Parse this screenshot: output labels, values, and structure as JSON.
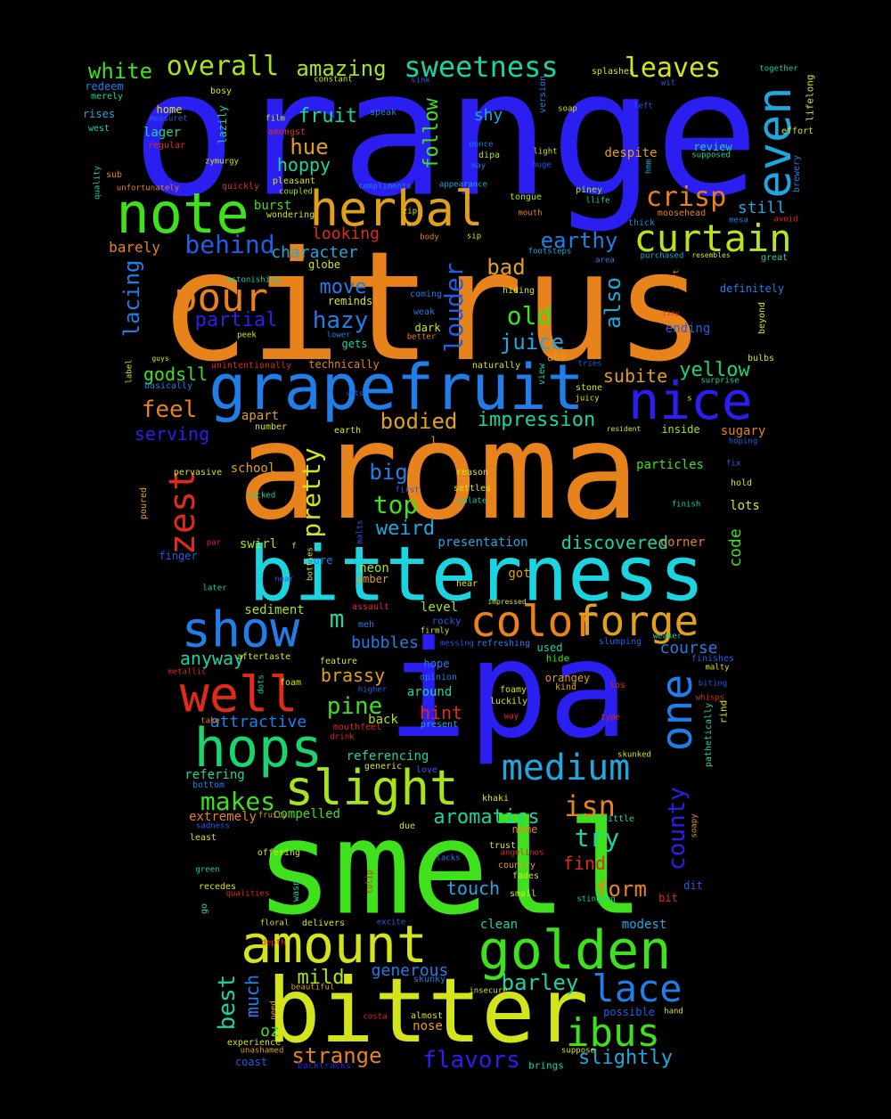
{
  "words": [
    {
      "text": "orange",
      "color": "#2a1ff0"
    },
    {
      "text": "citrus",
      "color": "#e8821a"
    },
    {
      "text": "aroma",
      "color": "#e8821a"
    },
    {
      "text": "ipa",
      "color": "#2a1ff0"
    },
    {
      "text": "smell",
      "color": "#3fe01c"
    },
    {
      "text": "bitter",
      "color": "#d4e41a"
    },
    {
      "text": "bitterness",
      "color": "#1ad4e0"
    },
    {
      "text": "grapefruit",
      "color": "#1f7ee8"
    },
    {
      "text": "note",
      "color": "#3fe01c"
    },
    {
      "text": "herbal",
      "color": "#e0a01a"
    },
    {
      "text": "golden",
      "color": "#3fe01c"
    },
    {
      "text": "amount",
      "color": "#d4e41a"
    },
    {
      "text": "hops",
      "color": "#1ad470"
    },
    {
      "text": "nice",
      "color": "#2a1ff0"
    },
    {
      "text": "show",
      "color": "#1f7ee8"
    },
    {
      "text": "well",
      "color": "#e02a1a"
    },
    {
      "text": "slight",
      "color": "#a8e41a"
    },
    {
      "text": "color",
      "color": "#e8821a"
    },
    {
      "text": "forge",
      "color": "#e0a01a"
    },
    {
      "text": "medium",
      "color": "#1fa8e0"
    },
    {
      "text": "one",
      "color": "#1f7ee8"
    },
    {
      "text": "even",
      "color": "#1fa8e0"
    },
    {
      "text": "curtain",
      "color": "#b8e41a"
    },
    {
      "text": "pour",
      "color": "#e8821a"
    },
    {
      "text": "zest",
      "color": "#e02a1a"
    },
    {
      "text": "ibus",
      "color": "#3fe01c"
    },
    {
      "text": "lace",
      "color": "#1f7ee8"
    },
    {
      "text": "sweetness",
      "color": "#1ad4a0"
    },
    {
      "text": "overall",
      "color": "#a8e41a"
    },
    {
      "text": "leaves",
      "color": "#d4e41a"
    },
    {
      "text": "crisp",
      "color": "#e8821a"
    },
    {
      "text": "louder",
      "color": "#1f5ee8"
    },
    {
      "text": "pretty",
      "color": "#d4e41a"
    },
    {
      "text": "also",
      "color": "#1fa8e0"
    },
    {
      "text": "white",
      "color": "#3fe01c"
    },
    {
      "text": "amazing",
      "color": "#a8e41a"
    },
    {
      "text": "fruit",
      "color": "#1ad4a0"
    },
    {
      "text": "hue",
      "color": "#e0a01a"
    },
    {
      "text": "hoppy",
      "color": "#1ad4a0"
    },
    {
      "text": "follow",
      "color": "#3fe01c"
    },
    {
      "text": "shy",
      "color": "#1fa8e0"
    },
    {
      "text": "behind",
      "color": "#1f5ee8"
    },
    {
      "text": "bad",
      "color": "#e0a01a"
    },
    {
      "text": "earthy",
      "color": "#1f7ee8"
    },
    {
      "text": "looking",
      "color": "#e02a1a"
    },
    {
      "text": "character",
      "color": "#1fa8e0"
    },
    {
      "text": "lacing",
      "color": "#1f7ee8"
    },
    {
      "text": "partial",
      "color": "#2a1ff0"
    },
    {
      "text": "hazy",
      "color": "#1f7ee8"
    },
    {
      "text": "move",
      "color": "#1f7ee8"
    },
    {
      "text": "old",
      "color": "#3fe01c"
    },
    {
      "text": "juice",
      "color": "#1fa8e0"
    },
    {
      "text": "godsll",
      "color": "#3fe01c"
    },
    {
      "text": "subite",
      "color": "#e0a01a"
    },
    {
      "text": "yellow",
      "color": "#1ad470"
    },
    {
      "text": "feel",
      "color": "#e8821a"
    },
    {
      "text": "bodied",
      "color": "#e0a01a"
    },
    {
      "text": "impression",
      "color": "#1ad4a0"
    },
    {
      "text": "serving",
      "color": "#2a1ff0"
    },
    {
      "text": "big",
      "color": "#1f7ee8"
    },
    {
      "text": "top",
      "color": "#3fe01c"
    },
    {
      "text": "weird",
      "color": "#1fa8e0"
    },
    {
      "text": "discovered",
      "color": "#1ad4a0"
    },
    {
      "text": "code",
      "color": "#3fe01c"
    },
    {
      "text": "m",
      "color": "#1ad4a0"
    },
    {
      "text": "brassy",
      "color": "#e0a01a"
    },
    {
      "text": "pine",
      "color": "#3fe01c"
    },
    {
      "text": "hint",
      "color": "#e02a1a"
    },
    {
      "text": "bubbles",
      "color": "#1f7ee8"
    },
    {
      "text": "makes",
      "color": "#3fe01c"
    },
    {
      "text": "anyway",
      "color": "#1ad4a0"
    },
    {
      "text": "attractive",
      "color": "#1f7ee8"
    },
    {
      "text": "course",
      "color": "#1f7ee8"
    },
    {
      "text": "county",
      "color": "#2a1ff0"
    },
    {
      "text": "isn",
      "color": "#e8821a"
    },
    {
      "text": "try",
      "color": "#1ad4a0"
    },
    {
      "text": "aromatics",
      "color": "#1ad4a0"
    },
    {
      "text": "find",
      "color": "#e02a1a"
    },
    {
      "text": "form",
      "color": "#e8821a"
    },
    {
      "text": "touch",
      "color": "#1fa8e0"
    },
    {
      "text": "best",
      "color": "#1ad4a0"
    },
    {
      "text": "much",
      "color": "#1f7ee8"
    },
    {
      "text": "mild",
      "color": "#a8e41a"
    },
    {
      "text": "generous",
      "color": "#1f7ee8"
    },
    {
      "text": "barley",
      "color": "#1ad4a0"
    },
    {
      "text": "strange",
      "color": "#e8821a"
    },
    {
      "text": "flavors",
      "color": "#2a1ff0"
    },
    {
      "text": "slightly",
      "color": "#1fa8e0"
    },
    {
      "text": "oz",
      "color": "#3fe01c"
    },
    {
      "text": "nose",
      "color": "#e0a01a"
    },
    {
      "text": "clean",
      "color": "#1ad4a0"
    },
    {
      "text": "modest",
      "color": "#1fa8e0"
    },
    {
      "text": "compelled",
      "color": "#3fe01c"
    },
    {
      "text": "referencing",
      "color": "#1ad4a0"
    },
    {
      "text": "refering",
      "color": "#1ad4a0"
    },
    {
      "text": "extremely",
      "color": "#e8821a"
    },
    {
      "text": "sediment",
      "color": "#a8e41a"
    },
    {
      "text": "swirl",
      "color": "#a8e41a"
    },
    {
      "text": "presentation",
      "color": "#1fa8e0"
    },
    {
      "text": "corner",
      "color": "#e8821a"
    },
    {
      "text": "neon",
      "color": "#a8e41a"
    },
    {
      "text": "amber",
      "color": "#e0a01a"
    },
    {
      "text": "got",
      "color": "#e0a01a"
    },
    {
      "text": "level",
      "color": "#a8e41a"
    },
    {
      "text": "around",
      "color": "#1ad4a0"
    },
    {
      "text": "back",
      "color": "#a8e41a"
    },
    {
      "text": "hope",
      "color": "#1f7ee8"
    },
    {
      "text": "sugary",
      "color": "#e8821a"
    },
    {
      "text": "inside",
      "color": "#a8e41a"
    },
    {
      "text": "particles",
      "color": "#3fe01c"
    },
    {
      "text": "lots",
      "color": "#d4e41a"
    },
    {
      "text": "apart",
      "color": "#e0a01a"
    },
    {
      "text": "school",
      "color": "#e0a01a"
    },
    {
      "text": "dark",
      "color": "#d4e41a"
    },
    {
      "text": "gets",
      "color": "#1ad4a0"
    },
    {
      "text": "reminds",
      "color": "#d4e41a"
    },
    {
      "text": "globe",
      "color": "#d4e41a"
    },
    {
      "text": "technically",
      "color": "#e8821a"
    },
    {
      "text": "still",
      "color": "#1fa8e0"
    },
    {
      "text": "despite",
      "color": "#e0a01a"
    },
    {
      "text": "review",
      "color": "#1ad4a0"
    },
    {
      "text": "ending",
      "color": "#1f5ee8"
    },
    {
      "text": "definitely",
      "color": "#1f7ee8"
    },
    {
      "text": "barely",
      "color": "#e8821a"
    },
    {
      "text": "burst",
      "color": "#3fe01c"
    },
    {
      "text": "finger",
      "color": "#1f5ee8"
    },
    {
      "text": "home",
      "color": "#d4e41a"
    },
    {
      "text": "lager",
      "color": "#1ad4a0"
    },
    {
      "text": "redeem",
      "color": "#1f7ee8"
    },
    {
      "text": "rises",
      "color": "#1fa8e0"
    },
    {
      "text": "lazily",
      "color": "#1ad4a0"
    },
    {
      "text": "bosy",
      "color": "#d4e41a"
    },
    {
      "text": "merely",
      "color": "#1ad4a0"
    },
    {
      "text": "west",
      "color": "#1ad4a0"
    },
    {
      "text": "regular",
      "color": "#e02a1a"
    },
    {
      "text": "measuret",
      "color": "#1f5ee8"
    },
    {
      "text": "film",
      "color": "#d4e41a"
    },
    {
      "text": "speak",
      "color": "#1f7ee8"
    },
    {
      "text": "amongst",
      "color": "#e02a1a"
    },
    {
      "text": "constant",
      "color": "#d4e41a"
    },
    {
      "text": "sink",
      "color": "#1f5ee8"
    },
    {
      "text": "splashes",
      "color": "#d4e41a"
    },
    {
      "text": "version",
      "color": "#1f7ee8"
    },
    {
      "text": "soap",
      "color": "#d4e41a"
    },
    {
      "text": "wit",
      "color": "#1f5ee8"
    },
    {
      "text": "left",
      "color": "#1f5ee8"
    },
    {
      "text": "together",
      "color": "#1ad4a0"
    },
    {
      "text": "lifelong",
      "color": "#d4e41a"
    },
    {
      "text": "effort",
      "color": "#d4e41a"
    },
    {
      "text": "brewery",
      "color": "#1f7ee8"
    },
    {
      "text": "quality",
      "color": "#1ad4a0"
    },
    {
      "text": "sub",
      "color": "#e8821a"
    },
    {
      "text": "zymurgy",
      "color": "#d4e41a"
    },
    {
      "text": "unfortunately",
      "color": "#e8821a"
    },
    {
      "text": "quickly",
      "color": "#e02a1a"
    },
    {
      "text": "pleasant",
      "color": "#d4e41a"
    },
    {
      "text": "coupled",
      "color": "#a8e41a"
    },
    {
      "text": "wondering",
      "color": "#d4e41a"
    },
    {
      "text": "ounce",
      "color": "#1f7ee8"
    },
    {
      "text": "nay",
      "color": "#1f7ee8"
    },
    {
      "text": "dipa",
      "color": "#a8e41a"
    },
    {
      "text": "compliments",
      "color": "#1f7ee8"
    },
    {
      "text": "appearance",
      "color": "#1fa8e0"
    },
    {
      "text": "light",
      "color": "#d4e41a"
    },
    {
      "text": "huge",
      "color": "#1f5ee8"
    },
    {
      "text": "hmm",
      "color": "#1fa8e0"
    },
    {
      "text": "supposed",
      "color": "#1ad4a0"
    },
    {
      "text": "tongue",
      "color": "#a8e41a"
    },
    {
      "text": "piney",
      "color": "#a8e41a"
    },
    {
      "text": "llife",
      "color": "#1ad4a0"
    },
    {
      "text": "mouth",
      "color": "#e8821a"
    },
    {
      "text": "thick",
      "color": "#1f7ee8"
    },
    {
      "text": "moosehead",
      "color": "#e8821a"
    },
    {
      "text": "mesa",
      "color": "#1f7ee8"
    },
    {
      "text": "avoid",
      "color": "#e02a1a"
    },
    {
      "text": "zip",
      "color": "#d4e41a"
    },
    {
      "text": "o",
      "color": "#d4e41a"
    },
    {
      "text": "body",
      "color": "#e8821a"
    },
    {
      "text": "sip",
      "color": "#d4e41a"
    },
    {
      "text": "footsteps",
      "color": "#1fa8e0"
    },
    {
      "text": "area",
      "color": "#1f7ee8"
    },
    {
      "text": "purchased",
      "color": "#1fa8e0"
    },
    {
      "text": "resembles",
      "color": "#d4e41a"
    },
    {
      "text": "great",
      "color": "#1ad4a0"
    },
    {
      "text": "mort",
      "color": "#e8821a"
    },
    {
      "text": "astonishing",
      "color": "#1ad4a0"
    },
    {
      "text": "coming",
      "color": "#1f7ee8"
    },
    {
      "text": "hiding",
      "color": "#d4e41a"
    },
    {
      "text": "weak",
      "color": "#1f7ee8"
    },
    {
      "text": "better",
      "color": "#e8821a"
    },
    {
      "text": "lower",
      "color": "#1f7ee8"
    },
    {
      "text": "tiny",
      "color": "#e02a1a"
    },
    {
      "text": "beyond",
      "color": "#d4e41a"
    },
    {
      "text": "peek",
      "color": "#d4e41a"
    },
    {
      "text": "label",
      "color": "#d4e41a"
    },
    {
      "text": "guys",
      "color": "#d4e41a"
    },
    {
      "text": "basically",
      "color": "#1f7ee8"
    },
    {
      "text": "unintentionally",
      "color": "#e02a1a"
    },
    {
      "text": "naturally",
      "color": "#d4e41a"
    },
    {
      "text": "abv",
      "color": "#e0a01a"
    },
    {
      "text": "tries",
      "color": "#1f5ee8"
    },
    {
      "text": "view",
      "color": "#1ad4a0"
    },
    {
      "text": "stone",
      "color": "#d4e41a"
    },
    {
      "text": "juicy",
      "color": "#d4e41a"
    },
    {
      "text": "surprise",
      "color": "#1ad4a0"
    },
    {
      "text": "s",
      "color": "#d4e41a"
    },
    {
      "text": "bulbs",
      "color": "#d4e41a"
    },
    {
      "text": "sets",
      "color": "#1f5ee8"
    },
    {
      "text": "number",
      "color": "#d4e41a"
    },
    {
      "text": "earth",
      "color": "#d4e41a"
    },
    {
      "text": "resident",
      "color": "#d4e41a"
    },
    {
      "text": "hoping",
      "color": "#1f5ee8"
    },
    {
      "text": "l",
      "color": "#e0a01a"
    },
    {
      "text": "fix",
      "color": "#1f5ee8"
    },
    {
      "text": "hold",
      "color": "#d4e41a"
    },
    {
      "text": "pervasive",
      "color": "#d4e41a"
    },
    {
      "text": "reason",
      "color": "#d4e41a"
    },
    {
      "text": "first",
      "color": "#1f5ee8"
    },
    {
      "text": "settles",
      "color": "#d4e41a"
    },
    {
      "text": "palate",
      "color": "#1ad4a0"
    },
    {
      "text": "lacked",
      "color": "#1ad4a0"
    },
    {
      "text": "finish",
      "color": "#1ad4a0"
    },
    {
      "text": "poured",
      "color": "#e0a01a"
    },
    {
      "text": "malts",
      "color": "#1f5ee8"
    },
    {
      "text": "par",
      "color": "#e02a1a"
    },
    {
      "text": "f",
      "color": "#d4e41a"
    },
    {
      "text": "sure",
      "color": "#1f7ee8"
    },
    {
      "text": "bottles",
      "color": "#d4e41a"
    },
    {
      "text": "near",
      "color": "#1f5ee8"
    },
    {
      "text": "hear",
      "color": "#d4e41a"
    },
    {
      "text": "later",
      "color": "#1ad4a0"
    },
    {
      "text": "impressed",
      "color": "#d4e41a"
    },
    {
      "text": "assault",
      "color": "#e02a1a"
    },
    {
      "text": "rocky",
      "color": "#1f5ee8"
    },
    {
      "text": "meh",
      "color": "#1f7ee8"
    },
    {
      "text": "firmly",
      "color": "#d4e41a"
    },
    {
      "text": "messing",
      "color": "#1f5ee8"
    },
    {
      "text": "refreshing",
      "color": "#1f7ee8"
    },
    {
      "text": "used",
      "color": "#1ad4a0"
    },
    {
      "text": "slumping",
      "color": "#1f5ee8"
    },
    {
      "text": "weaker",
      "color": "#1ad4a0"
    },
    {
      "text": "hide",
      "color": "#3fe01c"
    },
    {
      "text": "finishes",
      "color": "#1f5ee8"
    },
    {
      "text": "malty",
      "color": "#d4e41a"
    },
    {
      "text": "aftertaste",
      "color": "#d4e41a"
    },
    {
      "text": "feature",
      "color": "#d4e41a"
    },
    {
      "text": "opinion",
      "color": "#1f7ee8"
    },
    {
      "text": "metallic",
      "color": "#e02a1a"
    },
    {
      "text": "dots",
      "color": "#1ad4a0"
    },
    {
      "text": "foam",
      "color": "#d4e41a"
    },
    {
      "text": "higher",
      "color": "#1f5ee8"
    },
    {
      "text": "foamy",
      "color": "#d4e41a"
    },
    {
      "text": "luckily",
      "color": "#d4e41a"
    },
    {
      "text": "orangey",
      "color": "#e0a01a"
    },
    {
      "text": "kind",
      "color": "#e0a01a"
    },
    {
      "text": "los",
      "color": "#e02a1a"
    },
    {
      "text": "biting",
      "color": "#1f5ee8"
    },
    {
      "text": "whisps",
      "color": "#e02a1a"
    },
    {
      "text": "rind",
      "color": "#d4e41a"
    },
    {
      "text": "take",
      "color": "#e8821a"
    },
    {
      "text": "mouthfeel",
      "color": "#e02a1a"
    },
    {
      "text": "present",
      "color": "#1fa8e0"
    },
    {
      "text": "way",
      "color": "#e02a1a"
    },
    {
      "text": "type",
      "color": "#e02a1a"
    },
    {
      "text": "pathetically",
      "color": "#1ad4a0"
    },
    {
      "text": "drink",
      "color": "#e02a1a"
    },
    {
      "text": "generic",
      "color": "#d4e41a"
    },
    {
      "text": "love",
      "color": "#1f5ee8"
    },
    {
      "text": "skunked",
      "color": "#d4e41a"
    },
    {
      "text": "bottom",
      "color": "#1f7ee8"
    },
    {
      "text": "fruity",
      "color": "#e0a01a"
    },
    {
      "text": "sadness",
      "color": "#1f5ee8"
    },
    {
      "text": "due",
      "color": "#d4e41a"
    },
    {
      "text": "khaki",
      "color": "#d4e41a"
    },
    {
      "text": "little",
      "color": "#1ad4a0"
    },
    {
      "text": "soapy",
      "color": "#e0a01a"
    },
    {
      "text": "least",
      "color": "#d4e41a"
    },
    {
      "text": "trust",
      "color": "#d4e41a"
    },
    {
      "text": "angelinos",
      "color": "#e02a1a"
    },
    {
      "text": "name",
      "color": "#e8821a"
    },
    {
      "text": "green",
      "color": "#1ad4a0"
    },
    {
      "text": "offering",
      "color": "#d4e41a"
    },
    {
      "text": "lacks",
      "color": "#1f7ee8"
    },
    {
      "text": "country",
      "color": "#e0a01a"
    },
    {
      "text": "fades",
      "color": "#d4e41a"
    },
    {
      "text": "recedes",
      "color": "#d4e41a"
    },
    {
      "text": "qualities",
      "color": "#e02a1a"
    },
    {
      "text": "wasn",
      "color": "#1ad4a0"
    },
    {
      "text": "tulip",
      "color": "#e02a1a"
    },
    {
      "text": "small",
      "color": "#d4e41a"
    },
    {
      "text": "dit",
      "color": "#1f5ee8"
    },
    {
      "text": "go",
      "color": "#1ad4a0"
    },
    {
      "text": "stinging",
      "color": "#1ad4a0"
    },
    {
      "text": "bit",
      "color": "#e02a1a"
    },
    {
      "text": "floral",
      "color": "#d4e41a"
    },
    {
      "text": "delivers",
      "color": "#d4e41a"
    },
    {
      "text": "excite",
      "color": "#1f5ee8"
    },
    {
      "text": "depth",
      "color": "#e02a1a"
    },
    {
      "text": "skunky",
      "color": "#1f7ee8"
    },
    {
      "text": "beautiful",
      "color": "#e0a01a"
    },
    {
      "text": "insecure",
      "color": "#d4e41a"
    },
    {
      "text": "possible",
      "color": "#1f5ee8"
    },
    {
      "text": "need",
      "color": "#e0a01a"
    },
    {
      "text": "costa",
      "color": "#e02a1a"
    },
    {
      "text": "almost",
      "color": "#d4e41a"
    },
    {
      "text": "hand",
      "color": "#d4e41a"
    },
    {
      "text": "experience",
      "color": "#d4e41a"
    },
    {
      "text": "unashamed",
      "color": "#e0a01a"
    },
    {
      "text": "coast",
      "color": "#1f5ee8"
    },
    {
      "text": "backtracks",
      "color": "#2a1ff0"
    },
    {
      "text": "suppose",
      "color": "#d4e41a"
    },
    {
      "text": "brings",
      "color": "#1ad4a0"
    }
  ]
}
